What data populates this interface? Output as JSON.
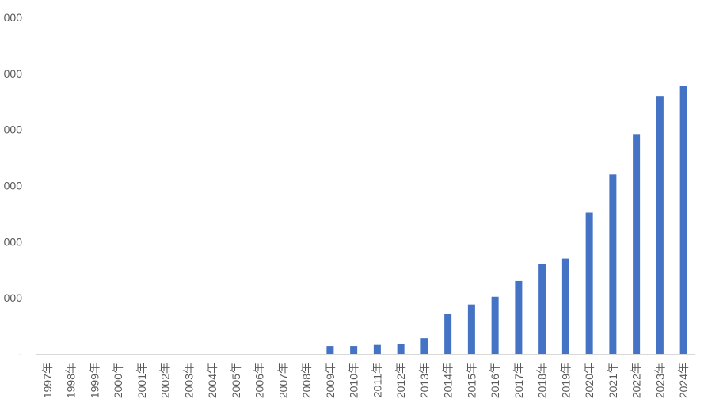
{
  "chart_data": {
    "type": "bar",
    "categories": [
      "1997年",
      "1998年",
      "1999年",
      "2000年",
      "2001年",
      "2002年",
      "2003年",
      "2004年",
      "2005年",
      "2006年",
      "2007年",
      "2008年",
      "2009年",
      "2010年",
      "2011年",
      "2012年",
      "2013年",
      "2014年",
      "2015年",
      "2016年",
      "2017年",
      "2018年",
      "2019年",
      "2020年",
      "2021年",
      "2022年",
      "2023年",
      "2024年"
    ],
    "series": [
      {
        "values": [
          0,
          0,
          0,
          0,
          0,
          0,
          0,
          0,
          0,
          0,
          0,
          0,
          14,
          14,
          16,
          18,
          28,
          72,
          88,
          102,
          130,
          160,
          170,
          252,
          320,
          392,
          460,
          478
        ]
      }
    ],
    "ylim": [
      0,
      600
    ],
    "ytick_values": [
      0,
      100,
      200,
      300,
      400,
      500,
      600
    ],
    "ytick_labels": [
      "-",
      "000",
      "000",
      "000",
      "000",
      "000",
      "000"
    ],
    "bar_color": "#4472C4",
    "axis_color": "#D9D9D9",
    "grid": false,
    "legend": "none"
  }
}
